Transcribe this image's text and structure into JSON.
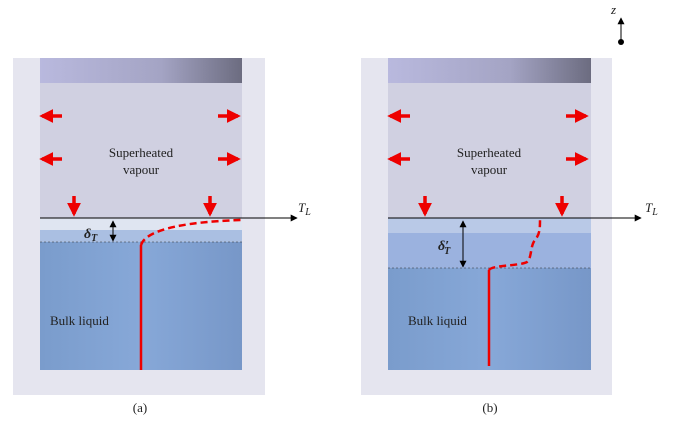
{
  "axis": "z",
  "panels": [
    {
      "label": "(a)",
      "vapour": [
        "Superheated",
        "vapour"
      ],
      "liquid": "Bulk liquid",
      "thickness": {
        "symbol": "δ",
        "subscript": "T"
      },
      "temperature": {
        "symbol": "T",
        "subscript": "L"
      }
    },
    {
      "label": "(b)",
      "vapour": [
        "Superheated",
        "vapour"
      ],
      "liquid": "Bulk liquid",
      "thickness": {
        "symbol": "δ′",
        "subscript": "T"
      },
      "temperature": {
        "symbol": "T",
        "subscript": "L"
      }
    }
  ]
}
